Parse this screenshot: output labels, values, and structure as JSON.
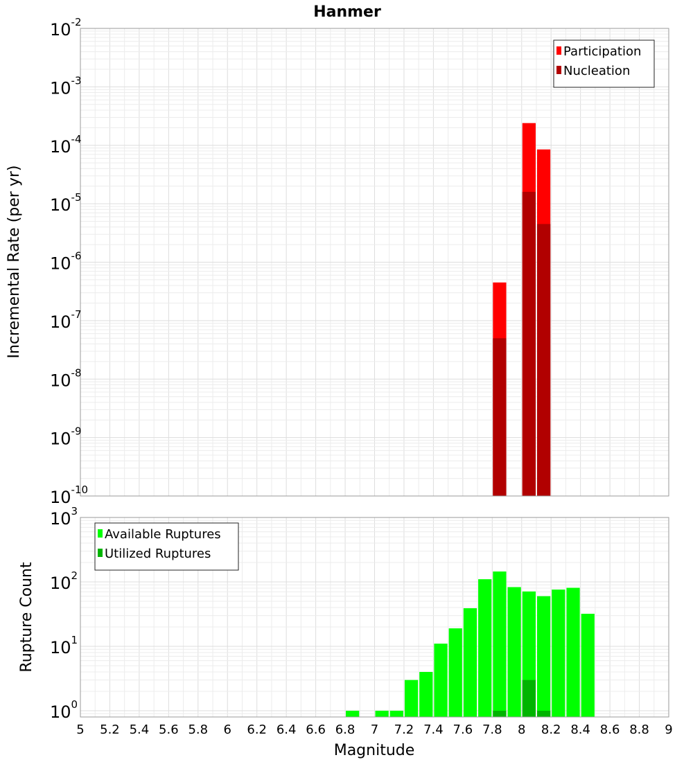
{
  "chart_data": [
    {
      "type": "bar",
      "title": "Hanmer",
      "xlabel": "",
      "ylabel": "Incremental Rate (per yr)",
      "xlim": [
        5,
        9
      ],
      "ylim": [
        1e-10,
        0.01
      ],
      "yscale": "log",
      "grid": true,
      "legend_position": "top-right",
      "bin_width": 0.1,
      "y_tick_labels": [
        {
          "base": "10",
          "exp": "-10",
          "value": 1e-10
        },
        {
          "base": "10",
          "exp": "-9",
          "value": 1e-09
        },
        {
          "base": "10",
          "exp": "-8",
          "value": 1e-08
        },
        {
          "base": "10",
          "exp": "-7",
          "value": 1e-07
        },
        {
          "base": "10",
          "exp": "-6",
          "value": 1e-06
        },
        {
          "base": "10",
          "exp": "-5",
          "value": 1e-05
        },
        {
          "base": "10",
          "exp": "-4",
          "value": 0.0001
        },
        {
          "base": "10",
          "exp": "-3",
          "value": 0.001
        },
        {
          "base": "10",
          "exp": "-2",
          "value": 0.01
        }
      ],
      "series": [
        {
          "name": "Participation",
          "color": "#ff0000",
          "x": [
            7.85,
            8.05,
            8.15
          ],
          "values": [
            4.5e-07,
            0.00024,
            8.5e-05
          ]
        },
        {
          "name": "Nucleation",
          "color": "#b10000",
          "x": [
            7.85,
            8.05,
            8.15
          ],
          "values": [
            5e-08,
            1.6e-05,
            4.5e-06
          ]
        }
      ]
    },
    {
      "type": "bar",
      "title": "",
      "xlabel": "Magnitude",
      "ylabel": "Rupture Count",
      "xlim": [
        5,
        9
      ],
      "ylim": [
        0.8,
        1000
      ],
      "yscale": "log",
      "grid": true,
      "legend_position": "top-left",
      "bin_width": 0.1,
      "x_tick_labels": [
        "5",
        "5.2",
        "5.4",
        "5.6",
        "5.8",
        "6",
        "6.2",
        "6.4",
        "6.6",
        "6.8",
        "7",
        "7.2",
        "7.4",
        "7.6",
        "7.8",
        "8",
        "8.2",
        "8.4",
        "8.6",
        "8.8",
        "9"
      ],
      "y_tick_labels": [
        {
          "base": "10",
          "exp": "0",
          "value": 1
        },
        {
          "base": "10",
          "exp": "1",
          "value": 10
        },
        {
          "base": "10",
          "exp": "2",
          "value": 100
        },
        {
          "base": "10",
          "exp": "3",
          "value": 1000
        }
      ],
      "series": [
        {
          "name": "Available Ruptures",
          "color": "#00ff00",
          "x": [
            6.85,
            7.05,
            7.15,
            7.25,
            7.35,
            7.45,
            7.55,
            7.65,
            7.75,
            7.85,
            7.95,
            8.05,
            8.15,
            8.25,
            8.35,
            8.45
          ],
          "values": [
            1,
            1,
            1,
            3,
            4,
            11,
            19,
            39,
            110,
            145,
            83,
            71,
            60,
            76,
            81,
            32
          ]
        },
        {
          "name": "Utilized Ruptures",
          "color": "#00b400",
          "x": [
            7.85,
            8.05,
            8.15
          ],
          "values": [
            1,
            3,
            1
          ]
        }
      ]
    }
  ]
}
